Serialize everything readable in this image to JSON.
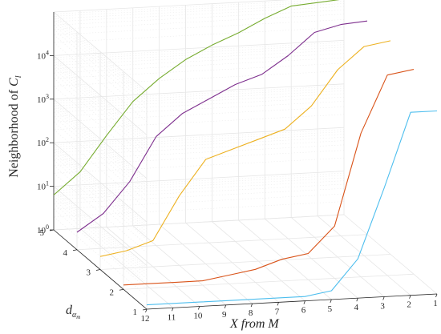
{
  "chart_data": {
    "type": "line",
    "view": "3d",
    "xlabel_main": "X from ",
    "xlabel_var": "M",
    "ylabel_main": "d",
    "ylabel_sub": "α",
    "ylabel_subsub": "m",
    "zlabel_main": "Neighborhood of ",
    "zlabel_var": "C",
    "zlabel_sub": "l",
    "x_ticks": [
      "1",
      "2",
      "3",
      "4",
      "5",
      "6",
      "7",
      "8",
      "9",
      "10",
      "11",
      "12"
    ],
    "y_ticks": [
      "1",
      "2",
      "3",
      "4",
      "5"
    ],
    "z_ticks": [
      {
        "base": "10",
        "exp": "0"
      },
      {
        "base": "10",
        "exp": "1"
      },
      {
        "base": "10",
        "exp": "2"
      },
      {
        "base": "10",
        "exp": "3"
      },
      {
        "base": "10",
        "exp": "4"
      }
    ],
    "xlim": [
      1,
      12
    ],
    "ylim": [
      1,
      5
    ],
    "zlim_log10": [
      0,
      5
    ],
    "zscale": "log",
    "grid": true,
    "x": [
      1,
      2,
      3,
      4,
      5,
      6,
      7,
      8,
      9,
      10,
      11,
      12
    ],
    "series": [
      {
        "y": 1,
        "color": "#4DBEEE",
        "log10_values": [
          4.2,
          4.2,
          2.5,
          0.9,
          0.2,
          0.1,
          0.1,
          0.1,
          0.1,
          0.1,
          0.1,
          0.1
        ]
      },
      {
        "y": 2,
        "color": "#D95319",
        "log10_values": [
          4.7,
          4.6,
          3.3,
          1.2,
          0.6,
          0.5,
          0.3,
          0.2,
          0.1,
          0.1,
          0.1,
          0.1
        ]
      },
      {
        "y": 3,
        "color": "#EDB120",
        "log10_values": [
          4.9,
          4.8,
          4.3,
          3.5,
          3.0,
          2.8,
          2.6,
          2.4,
          1.6,
          0.6,
          0.4,
          0.3
        ]
      },
      {
        "y": 4,
        "color": "#7E2F8E",
        "log10_values": [
          4.9,
          4.85,
          4.7,
          4.2,
          3.8,
          3.6,
          3.3,
          3.0,
          2.5,
          1.5,
          0.8,
          0.4
        ]
      },
      {
        "y": 5,
        "color": "#77AC30",
        "log10_values": [
          4.95,
          4.9,
          4.85,
          4.6,
          4.3,
          4.05,
          3.75,
          3.35,
          2.85,
          2.1,
          1.3,
          0.8
        ]
      }
    ]
  }
}
